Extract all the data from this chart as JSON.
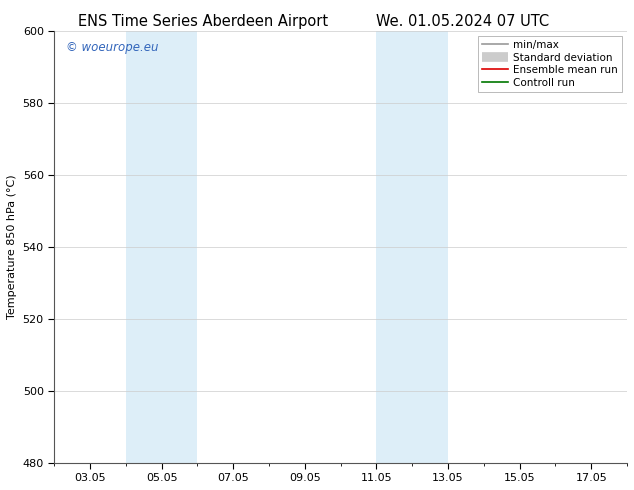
{
  "title_left": "ENS Time Series Aberdeen Airport",
  "title_right": "We. 01.05.2024 07 UTC",
  "ylabel": "Temperature 850 hPa (°C)",
  "ylim": [
    480,
    600
  ],
  "yticks": [
    480,
    500,
    520,
    540,
    560,
    580,
    600
  ],
  "xtick_labels": [
    "03.05",
    "05.05",
    "07.05",
    "09.05",
    "11.05",
    "13.05",
    "15.05",
    "17.05"
  ],
  "xtick_positions": [
    3,
    5,
    7,
    9,
    11,
    13,
    15,
    17
  ],
  "x_min": 2.0,
  "x_max": 18.0,
  "shaded_bands": [
    {
      "start": 4.0,
      "end": 6.0
    },
    {
      "start": 11.0,
      "end": 13.0
    }
  ],
  "shaded_color": "#ddeef8",
  "watermark_text": "© woeurope.eu",
  "watermark_color": "#3366bb",
  "legend_items": [
    {
      "label": "min/max",
      "color": "#999999",
      "lw": 1.2
    },
    {
      "label": "Standard deviation",
      "color": "#cccccc",
      "lw": 7
    },
    {
      "label": "Ensemble mean run",
      "color": "#dd0000",
      "lw": 1.2
    },
    {
      "label": "Controll run",
      "color": "#007700",
      "lw": 1.2
    }
  ],
  "bg_color": "#ffffff",
  "grid_color": "#cccccc",
  "title_fontsize": 10.5,
  "tick_fontsize": 8,
  "ylabel_fontsize": 8,
  "legend_fontsize": 7.5
}
